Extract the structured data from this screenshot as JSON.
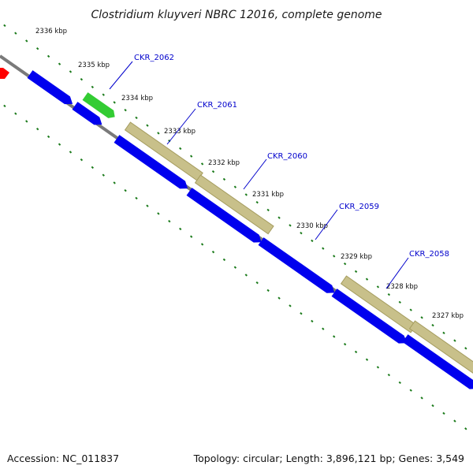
{
  "title": "Clostridium kluyveri NBRC 12016, complete genome",
  "accession_text": "Accession: NC_011837",
  "summary_text": "Topology: circular; Length: 3,896,121 bp; Genes: 3,549",
  "colors": {
    "backbone": "#7a7a7a",
    "cds": "#0000ee",
    "gene": "#c8c08a",
    "rna": "#33cc33",
    "other": "#ff0000",
    "dots": "#1a7a1a",
    "label": "#0000cc"
  },
  "ticks": [
    {
      "label": "2336 kbp"
    },
    {
      "label": "2335 kbp"
    },
    {
      "label": "2334 kbp"
    },
    {
      "label": "2333 kbp"
    },
    {
      "label": "2332 kbp"
    },
    {
      "label": "2331 kbp"
    },
    {
      "label": "2330 kbp"
    },
    {
      "label": "2329 kbp"
    },
    {
      "label": "2328 kbp"
    },
    {
      "label": "2327 kbp"
    }
  ],
  "gene_labels": [
    {
      "label": "CKR_2062"
    },
    {
      "label": "CKR_2061"
    },
    {
      "label": "CKR_2060"
    },
    {
      "label": "CKR_2059"
    },
    {
      "label": "CKR_2058"
    }
  ]
}
